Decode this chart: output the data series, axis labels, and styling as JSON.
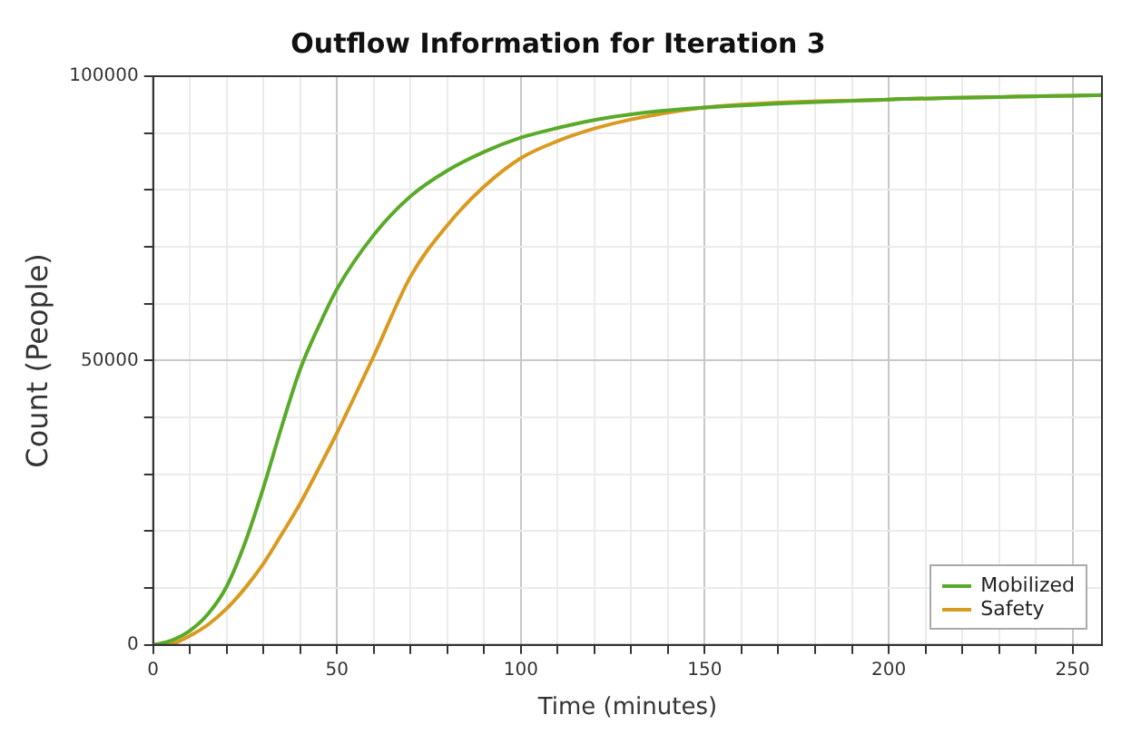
{
  "chart_data": {
    "type": "line",
    "title": "Outflow Information for Iteration 3",
    "xlabel": "Time (minutes)",
    "ylabel": "Count (People)",
    "xlim": [
      0,
      258
    ],
    "ylim": [
      0,
      100000
    ],
    "xticks": [
      0,
      {
        "value": 10,
        "label": null
      },
      {
        "value": 20,
        "label": null
      },
      {
        "value": 30,
        "label": null
      },
      {
        "value": 40,
        "label": null
      },
      50,
      {
        "value": 60,
        "label": null
      },
      {
        "value": 70,
        "label": null
      },
      {
        "value": 80,
        "label": null
      },
      {
        "value": 90,
        "label": null
      },
      100,
      {
        "value": 110,
        "label": null
      },
      {
        "value": 120,
        "label": null
      },
      {
        "value": 130,
        "label": null
      },
      {
        "value": 140,
        "label": null
      },
      150,
      {
        "value": 160,
        "label": null
      },
      {
        "value": 170,
        "label": null
      },
      {
        "value": 180,
        "label": null
      },
      {
        "value": 190,
        "label": null
      },
      200,
      {
        "value": 210,
        "label": null
      },
      {
        "value": 220,
        "label": null
      },
      {
        "value": 230,
        "label": null
      },
      {
        "value": 240,
        "label": null
      },
      250
    ],
    "yticks": [
      0,
      {
        "value": 10000,
        "label": null
      },
      {
        "value": 20000,
        "label": null
      },
      {
        "value": 30000,
        "label": null
      },
      {
        "value": 40000,
        "label": null
      },
      50000,
      {
        "value": 60000,
        "label": null
      },
      {
        "value": 70000,
        "label": null
      },
      {
        "value": 80000,
        "label": null
      },
      {
        "value": 90000,
        "label": null
      },
      100000
    ],
    "grid": true,
    "legend": "bottom right",
    "marker": "none",
    "line_style": "solid",
    "series": [
      {
        "name": "Mobilized",
        "color": "#5aaa2a",
        "x": [
          0,
          5,
          10,
          15,
          20,
          25,
          30,
          35,
          40,
          45,
          50,
          60,
          70,
          80,
          90,
          100,
          110,
          120,
          130,
          150,
          200,
          258
        ],
        "values": [
          0,
          800,
          2500,
          5500,
          10300,
          18000,
          27700,
          38500,
          48500,
          56000,
          62600,
          72100,
          78900,
          83400,
          86700,
          89200,
          90900,
          92300,
          93300,
          94500,
          95900,
          96700
        ]
      },
      {
        "name": "Safety",
        "color": "#d99a20",
        "x": [
          0,
          5,
          10,
          15,
          20,
          25,
          30,
          35,
          40,
          45,
          50,
          55,
          60,
          70,
          80,
          90,
          100,
          110,
          120,
          130,
          150,
          200,
          258
        ],
        "values": [
          0,
          200,
          1600,
          3600,
          6400,
          10000,
          14300,
          19500,
          24900,
          31000,
          37300,
          44000,
          50800,
          64800,
          73800,
          80600,
          85600,
          88600,
          90800,
          92400,
          94500,
          95900,
          96700
        ]
      }
    ]
  }
}
